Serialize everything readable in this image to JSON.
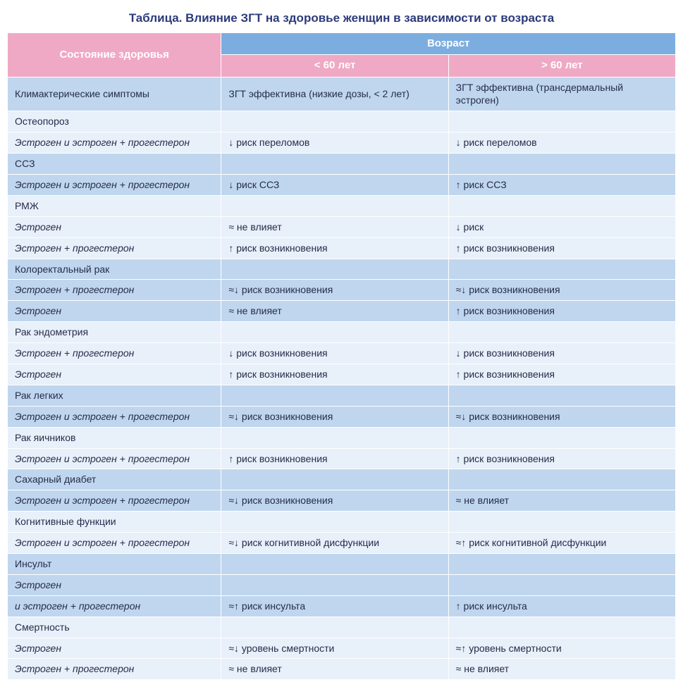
{
  "title": "Таблица. Влияние ЗГТ на здоровье женщин в зависимости от возраста",
  "colors": {
    "header_pink": "#f0a9c4",
    "header_blue": "#7caddf",
    "band_dark": "#bfd6ee",
    "band_light": "#e8f0fa",
    "border": "#ffffff",
    "title_color": "#2c3a7a",
    "text_color": "#262c4a"
  },
  "headers": {
    "col1": "Состояние здоровья",
    "age_group": "Возраст",
    "under60": "< 60 лет",
    "over60": "> 60 лет"
  },
  "groups": [
    {
      "band": "dark",
      "rows": [
        {
          "c1": "Климактерические симптомы",
          "c2": "ЗГТ эффективна (низкие дозы, < 2 лет)",
          "c3": "ЗГТ эффективна (трансдермальный эстроген)"
        }
      ]
    },
    {
      "band": "light",
      "rows": [
        {
          "c1": "Остеопороз",
          "c2": "",
          "c3": ""
        },
        {
          "c1": "Эстроген и эстроген + прогестерон",
          "italic": true,
          "c2": "↓ риск переломов",
          "c3": "↓ риск переломов"
        }
      ]
    },
    {
      "band": "dark",
      "rows": [
        {
          "c1": "ССЗ",
          "c2": "",
          "c3": ""
        },
        {
          "c1": "Эстроген и эстроген + прогестерон",
          "italic": true,
          "c2": "↓ риск ССЗ",
          "c3": "↑ риск ССЗ"
        }
      ]
    },
    {
      "band": "light",
      "rows": [
        {
          "c1": "РМЖ",
          "c2": "",
          "c3": ""
        },
        {
          "c1": "Эстроген",
          "italic": true,
          "c2": "≈ не влияет",
          "c3": "↓ риск"
        },
        {
          "c1": "Эстроген + прогестерон",
          "italic": true,
          "c2": "↑ риск возникновения",
          "c3": "↑ риск возникновения"
        }
      ]
    },
    {
      "band": "dark",
      "rows": [
        {
          "c1": "Колоректальный рак",
          "c2": "",
          "c3": ""
        },
        {
          "c1": "Эстроген + прогестерон",
          "italic": true,
          "c2": "≈↓ риск возникновения",
          "c3": "≈↓ риск возникновения"
        },
        {
          "c1": "Эстроген",
          "italic": true,
          "c2": "≈ не влияет",
          "c3": "↑ риск возникновения"
        }
      ]
    },
    {
      "band": "light",
      "rows": [
        {
          "c1": "Рак эндометрия",
          "c2": "",
          "c3": ""
        },
        {
          "c1": "Эстроген + прогестерон",
          "italic": true,
          "c2": "↓ риск возникновения",
          "c3": "↓ риск возникновения"
        },
        {
          "c1": "Эстроген",
          "italic": true,
          "c2": "↑ риск возникновения",
          "c3": "↑ риск возникновения"
        }
      ]
    },
    {
      "band": "dark",
      "rows": [
        {
          "c1": "Рак легких",
          "c2": "",
          "c3": ""
        },
        {
          "c1": "Эстроген и эстроген + прогестерон",
          "italic": true,
          "c2": "≈↓ риск возникновения",
          "c3": "≈↓ риск возникновения"
        }
      ]
    },
    {
      "band": "light",
      "rows": [
        {
          "c1": "Рак яичников",
          "c2": "",
          "c3": ""
        },
        {
          "c1": "Эстроген и эстроген + прогестерон",
          "italic": true,
          "c2": "↑ риск возникновения",
          "c3": "↑ риск возникновения"
        }
      ]
    },
    {
      "band": "dark",
      "rows": [
        {
          "c1": "Сахарный диабет",
          "c2": "",
          "c3": ""
        },
        {
          "c1": "Эстроген и эстроген + прогестерон",
          "italic": true,
          "c2": "≈↓ риск возникновения",
          "c3": "≈ не влияет"
        }
      ]
    },
    {
      "band": "light",
      "rows": [
        {
          "c1": "Когнитивные функции",
          "c2": "",
          "c3": ""
        },
        {
          "c1": "Эстроген и эстроген + прогестерон",
          "italic": true,
          "c2": "≈↓ риск когнитивной дисфункции",
          "c3": "≈↑ риск когнитивной дисфункции"
        }
      ]
    },
    {
      "band": "dark",
      "rows": [
        {
          "c1": "Инсульт",
          "c2": "",
          "c3": ""
        },
        {
          "c1": "Эстроген",
          "italic": true,
          "c2": "",
          "c3": ""
        },
        {
          "c1": "и эстроген + прогестерон",
          "italic": true,
          "c2": "≈↑ риск инсульта",
          "c3": "↑ риск инсульта"
        }
      ]
    },
    {
      "band": "light",
      "rows": [
        {
          "c1": "Смертность",
          "c2": "",
          "c3": ""
        },
        {
          "c1": "Эстроген",
          "italic": true,
          "c2": "≈↓ уровень смертности",
          "c3": "≈↑ уровень смертности"
        },
        {
          "c1": "Эстроген + прогестерон",
          "italic": true,
          "c2": "≈ не влияет",
          "c3": "≈ не влияет"
        }
      ]
    }
  ]
}
